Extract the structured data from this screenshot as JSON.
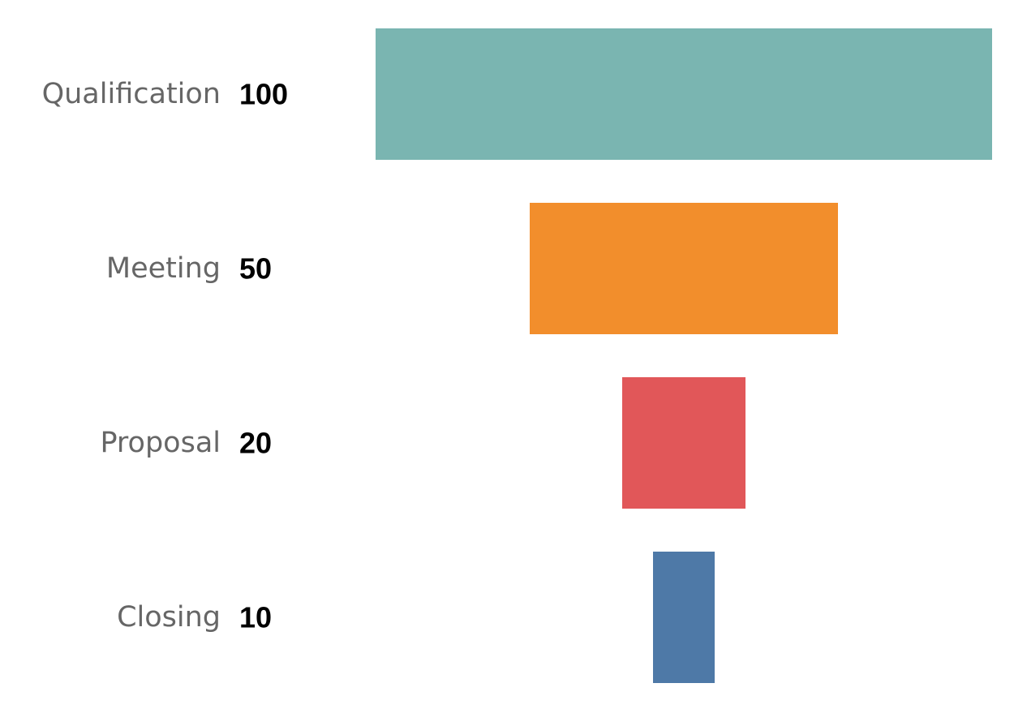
{
  "chart_data": {
    "type": "bar",
    "orientation": "horizontal-funnel",
    "categories": [
      "Qualification",
      "Meeting",
      "Proposal",
      "Closing"
    ],
    "values": [
      100,
      50,
      20,
      10
    ],
    "value_labels": [
      "100",
      "50",
      "20",
      "10"
    ],
    "colors": [
      "#7ab5b1",
      "#f28e2c",
      "#e15759",
      "#4e79a7"
    ],
    "xlim": [
      0,
      100
    ],
    "grid": false,
    "legend": "none",
    "title": "",
    "xlabel": "",
    "ylabel": ""
  }
}
